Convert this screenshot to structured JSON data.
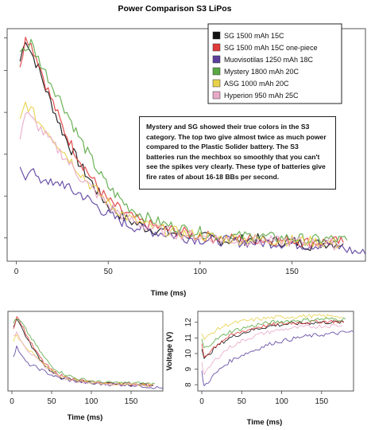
{
  "chart_data": [
    {
      "type": "line",
      "title": "Power Comparison S3 LiPos",
      "xlabel": "Time (ms)",
      "ylabel": "",
      "xlim": [
        -5,
        190
      ],
      "ylim": [
        0,
        10
      ],
      "xticks": [
        0,
        50,
        100,
        150
      ],
      "grid": false,
      "legend_position": "top-right",
      "annotation": "Mystery and SG showed their true colors in the S3 category. The top two give almost twice as much power compared to the Plastic Solider battery. The S3 batteries run the mechbox so smoothly that you can't see the spikes very clearly. These type of batteries give fire rates of about 16-18 BBs per second.",
      "series": [
        {
          "name": "SG 1500 mAh 15C",
          "color": "#111111",
          "x": [
            2,
            5,
            8,
            12,
            16,
            20,
            25,
            30,
            35,
            40,
            45,
            50,
            55,
            60,
            70,
            80,
            90,
            100,
            110,
            120,
            130,
            140,
            150,
            160,
            170,
            178
          ],
          "y": [
            8.6,
            9.6,
            9.0,
            8.3,
            7.4,
            6.6,
            5.6,
            4.8,
            4.1,
            3.5,
            2.9,
            2.4,
            2.1,
            1.8,
            1.45,
            1.3,
            1.15,
            1.05,
            0.9,
            0.9,
            0.95,
            0.85,
            0.85,
            0.7,
            0.8,
            0.75
          ]
        },
        {
          "name": "SG 1500 mAh 15C one-piece",
          "color": "#e03b3b",
          "x": [
            2,
            5,
            8,
            12,
            16,
            20,
            25,
            30,
            35,
            40,
            45,
            50,
            55,
            60,
            70,
            80,
            90,
            100,
            110,
            120,
            130,
            140,
            150,
            160,
            170,
            178
          ],
          "y": [
            8.2,
            9.8,
            9.3,
            8.6,
            7.6,
            6.8,
            5.8,
            5.0,
            4.3,
            3.7,
            3.1,
            2.6,
            2.3,
            2.0,
            1.6,
            1.4,
            1.25,
            1.1,
            1.0,
            0.95,
            0.95,
            0.9,
            0.9,
            0.8,
            0.85,
            0.8
          ]
        },
        {
          "name": "Muovisotilas 1250 mAh 18C",
          "color": "#5b3f9e",
          "x": [
            2,
            5,
            8,
            12,
            16,
            20,
            25,
            30,
            35,
            40,
            45,
            50,
            55,
            60,
            70,
            80,
            90,
            100,
            110,
            120,
            130,
            140,
            150,
            160,
            170,
            180,
            190
          ],
          "y": [
            3.9,
            3.7,
            4.1,
            3.4,
            3.6,
            3.2,
            3.4,
            3.0,
            2.9,
            2.6,
            2.3,
            2.0,
            1.8,
            1.6,
            1.35,
            1.2,
            1.05,
            0.95,
            0.9,
            0.85,
            0.8,
            0.8,
            0.75,
            0.7,
            0.75,
            0.5,
            0.3
          ]
        },
        {
          "name": "Mystery 1800 mAh 20C",
          "color": "#5aa845",
          "x": [
            2,
            5,
            8,
            12,
            16,
            20,
            25,
            30,
            35,
            40,
            45,
            50,
            55,
            60,
            70,
            80,
            90,
            100,
            110,
            120,
            130,
            140,
            150,
            160,
            170,
            180
          ],
          "y": [
            9.2,
            9.1,
            9.4,
            8.7,
            8.1,
            7.5,
            6.8,
            6.0,
            5.2,
            4.5,
            3.8,
            3.2,
            2.8,
            2.4,
            1.9,
            1.6,
            1.4,
            1.25,
            1.1,
            1.05,
            1.1,
            1.0,
            1.0,
            0.9,
            0.95,
            0.9
          ]
        },
        {
          "name": "ASG 1000 mAh 20C",
          "color": "#e8d24a",
          "x": [
            2,
            5,
            8,
            12,
            16,
            20,
            25,
            30,
            35,
            40,
            45,
            50,
            55,
            60,
            70,
            80,
            90,
            100,
            110,
            120,
            130,
            140,
            150,
            160,
            170,
            176
          ],
          "y": [
            6.0,
            6.8,
            6.5,
            6.0,
            5.7,
            5.3,
            4.8,
            4.3,
            3.8,
            3.3,
            2.9,
            2.5,
            2.2,
            1.9,
            1.55,
            1.35,
            1.2,
            1.1,
            1.0,
            0.95,
            0.95,
            0.9,
            0.9,
            0.85,
            0.8,
            0.7
          ]
        },
        {
          "name": "Hyperion 950 mAh 25C",
          "color": "#e8a9c8",
          "x": [
            2,
            5,
            8,
            12,
            16,
            20,
            25,
            30,
            35,
            40,
            45,
            50,
            55,
            60,
            70,
            80,
            90,
            100,
            110,
            120,
            130,
            140,
            150,
            160,
            170,
            176
          ],
          "y": [
            5.4,
            6.4,
            6.1,
            5.8,
            5.4,
            5.0,
            4.6,
            4.1,
            3.6,
            3.2,
            2.8,
            2.4,
            2.1,
            1.85,
            1.5,
            1.3,
            1.15,
            1.05,
            0.95,
            0.9,
            0.9,
            0.85,
            0.85,
            0.8,
            0.75,
            0.7
          ]
        }
      ]
    },
    {
      "type": "line",
      "title": "",
      "xlabel": "Time (ms)",
      "ylabel": "",
      "xlim": [
        -5,
        190
      ],
      "ylim": [
        0,
        10
      ],
      "xticks": [
        0,
        50,
        100,
        150
      ],
      "series": [
        {
          "color": "#111111",
          "x": [
            2,
            6,
            12,
            20,
            30,
            40,
            50,
            60,
            80,
            100,
            120,
            150,
            178
          ],
          "y": [
            8.0,
            9.2,
            8.0,
            6.4,
            4.8,
            3.4,
            2.4,
            1.8,
            1.3,
            1.05,
            0.9,
            0.85,
            0.75
          ]
        },
        {
          "color": "#e03b3b",
          "x": [
            2,
            6,
            12,
            20,
            30,
            40,
            50,
            60,
            80,
            100,
            120,
            150,
            178
          ],
          "y": [
            7.8,
            9.4,
            8.4,
            6.7,
            5.0,
            3.6,
            2.6,
            2.0,
            1.4,
            1.1,
            0.95,
            0.9,
            0.8
          ]
        },
        {
          "color": "#5b3f9e",
          "x": [
            2,
            6,
            12,
            20,
            30,
            40,
            50,
            60,
            80,
            100,
            120,
            150,
            190
          ],
          "y": [
            4.4,
            5.6,
            4.4,
            3.4,
            3.0,
            2.5,
            2.0,
            1.6,
            1.2,
            0.95,
            0.85,
            0.75,
            0.35
          ]
        },
        {
          "color": "#5aa845",
          "x": [
            2,
            6,
            12,
            20,
            30,
            40,
            50,
            60,
            80,
            100,
            120,
            150,
            180
          ],
          "y": [
            8.6,
            9.0,
            8.6,
            7.3,
            5.8,
            4.3,
            3.1,
            2.4,
            1.6,
            1.25,
            1.05,
            1.0,
            0.9
          ]
        },
        {
          "color": "#e8d24a",
          "x": [
            2,
            6,
            12,
            20,
            30,
            40,
            50,
            60,
            80,
            100,
            120,
            150,
            176
          ],
          "y": [
            6.4,
            7.0,
            6.2,
            5.3,
            4.3,
            3.3,
            2.5,
            1.9,
            1.35,
            1.1,
            0.95,
            0.9,
            0.7
          ]
        },
        {
          "color": "#e8a9c8",
          "x": [
            2,
            6,
            12,
            20,
            30,
            40,
            50,
            60,
            80,
            100,
            120,
            150,
            176
          ],
          "y": [
            6.8,
            7.4,
            6.4,
            5.1,
            4.1,
            3.2,
            2.4,
            1.85,
            1.3,
            1.05,
            0.9,
            0.85,
            0.7
          ]
        }
      ]
    },
    {
      "type": "line",
      "title": "",
      "xlabel": "Time (ms)",
      "ylabel": "Voltage (V)",
      "xlim": [
        -5,
        190
      ],
      "ylim": [
        7.6,
        12.7
      ],
      "xticks": [
        0,
        50,
        100,
        150
      ],
      "yticks": [
        8,
        9,
        10,
        11,
        12
      ],
      "series": [
        {
          "color": "#111111",
          "x": [
            0,
            3,
            8,
            15,
            25,
            35,
            50,
            70,
            90,
            110,
            130,
            150,
            170,
            178
          ],
          "y": [
            10.4,
            9.6,
            9.9,
            10.3,
            10.7,
            11.0,
            11.3,
            11.6,
            11.8,
            11.9,
            11.95,
            12.0,
            12.0,
            12.0
          ]
        },
        {
          "color": "#e03b3b",
          "x": [
            0,
            3,
            8,
            15,
            25,
            35,
            50,
            70,
            90,
            110,
            130,
            150,
            170,
            178
          ],
          "y": [
            10.6,
            9.8,
            10.0,
            10.4,
            10.8,
            11.1,
            11.4,
            11.7,
            11.85,
            11.95,
            12.0,
            12.05,
            12.05,
            12.0
          ]
        },
        {
          "color": "#5b3f9e",
          "x": [
            0,
            3,
            8,
            15,
            25,
            35,
            50,
            70,
            90,
            110,
            130,
            150,
            170,
            190
          ],
          "y": [
            8.8,
            7.9,
            8.2,
            8.6,
            9.1,
            9.5,
            9.9,
            10.3,
            10.7,
            10.9,
            11.1,
            11.2,
            11.3,
            11.4
          ]
        },
        {
          "color": "#5aa845",
          "x": [
            0,
            3,
            8,
            15,
            25,
            35,
            50,
            70,
            90,
            110,
            130,
            150,
            170,
            180
          ],
          "y": [
            10.9,
            10.3,
            10.5,
            10.8,
            11.1,
            11.4,
            11.6,
            11.85,
            12.0,
            12.1,
            12.15,
            12.2,
            12.2,
            12.2
          ]
        },
        {
          "color": "#e8d24a",
          "x": [
            0,
            3,
            8,
            15,
            25,
            35,
            50,
            70,
            90,
            110,
            130,
            150,
            170,
            176
          ],
          "y": [
            11.4,
            10.9,
            11.1,
            11.4,
            11.7,
            11.9,
            12.05,
            12.2,
            12.3,
            12.35,
            12.4,
            12.4,
            12.4,
            12.35
          ]
        },
        {
          "color": "#e8a9c8",
          "x": [
            0,
            3,
            8,
            15,
            25,
            35,
            50,
            70,
            90,
            110,
            130,
            150,
            170,
            176
          ],
          "y": [
            9.4,
            8.6,
            9.0,
            9.5,
            10.0,
            10.4,
            10.8,
            11.2,
            11.45,
            11.6,
            11.7,
            11.75,
            11.8,
            11.8
          ]
        }
      ]
    }
  ]
}
